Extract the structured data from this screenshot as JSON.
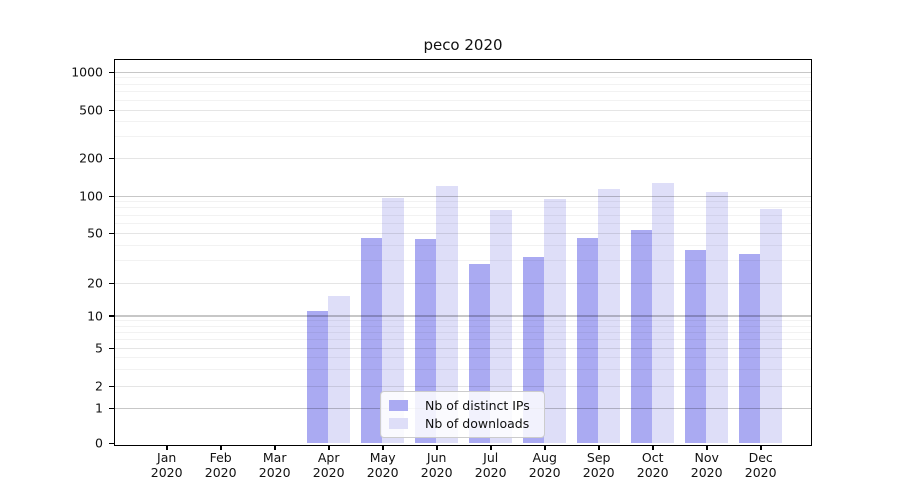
{
  "chart_data": {
    "type": "bar",
    "title": "peco 2020",
    "xlabel": "",
    "ylabel": "",
    "yscale": "symlog",
    "yticks": [
      0,
      1,
      2,
      5,
      10,
      20,
      50,
      100,
      200,
      500,
      1000
    ],
    "ylim": [
      0,
      1250
    ],
    "grid": "horizontal, drawn above bars",
    "categories": [
      {
        "month": "Jan",
        "year": "2020"
      },
      {
        "month": "Feb",
        "year": "2020"
      },
      {
        "month": "Mar",
        "year": "2020"
      },
      {
        "month": "Apr",
        "year": "2020"
      },
      {
        "month": "May",
        "year": "2020"
      },
      {
        "month": "Jun",
        "year": "2020"
      },
      {
        "month": "Jul",
        "year": "2020"
      },
      {
        "month": "Aug",
        "year": "2020"
      },
      {
        "month": "Sep",
        "year": "2020"
      },
      {
        "month": "Oct",
        "year": "2020"
      },
      {
        "month": "Nov",
        "year": "2020"
      },
      {
        "month": "Dec",
        "year": "2020"
      }
    ],
    "series": [
      {
        "name": "Nb of distinct IPs",
        "color": "#aaaaf2",
        "values": [
          null,
          null,
          null,
          11,
          45,
          44,
          28,
          32,
          45,
          52,
          36,
          34
        ]
      },
      {
        "name": "Nb of downloads",
        "color": "#dedef8",
        "values": [
          null,
          null,
          null,
          15,
          96,
          120,
          76,
          94,
          113,
          125,
          106,
          78
        ]
      }
    ],
    "legend": {
      "position": "lower center inside plot",
      "labels": [
        "Nb of distinct IPs",
        "Nb of downloads"
      ]
    }
  },
  "colors": {
    "background": "#ffffff",
    "axis": "#000000",
    "text": "#111111",
    "bar_distinct_ips": "#aaaaf2",
    "bar_downloads": "#dedef8",
    "grid_major": "#c8c8c8",
    "grid_mid": "#e6e6e6",
    "grid_minor": "#f2f2f2",
    "legend_border": "#cccccc"
  }
}
